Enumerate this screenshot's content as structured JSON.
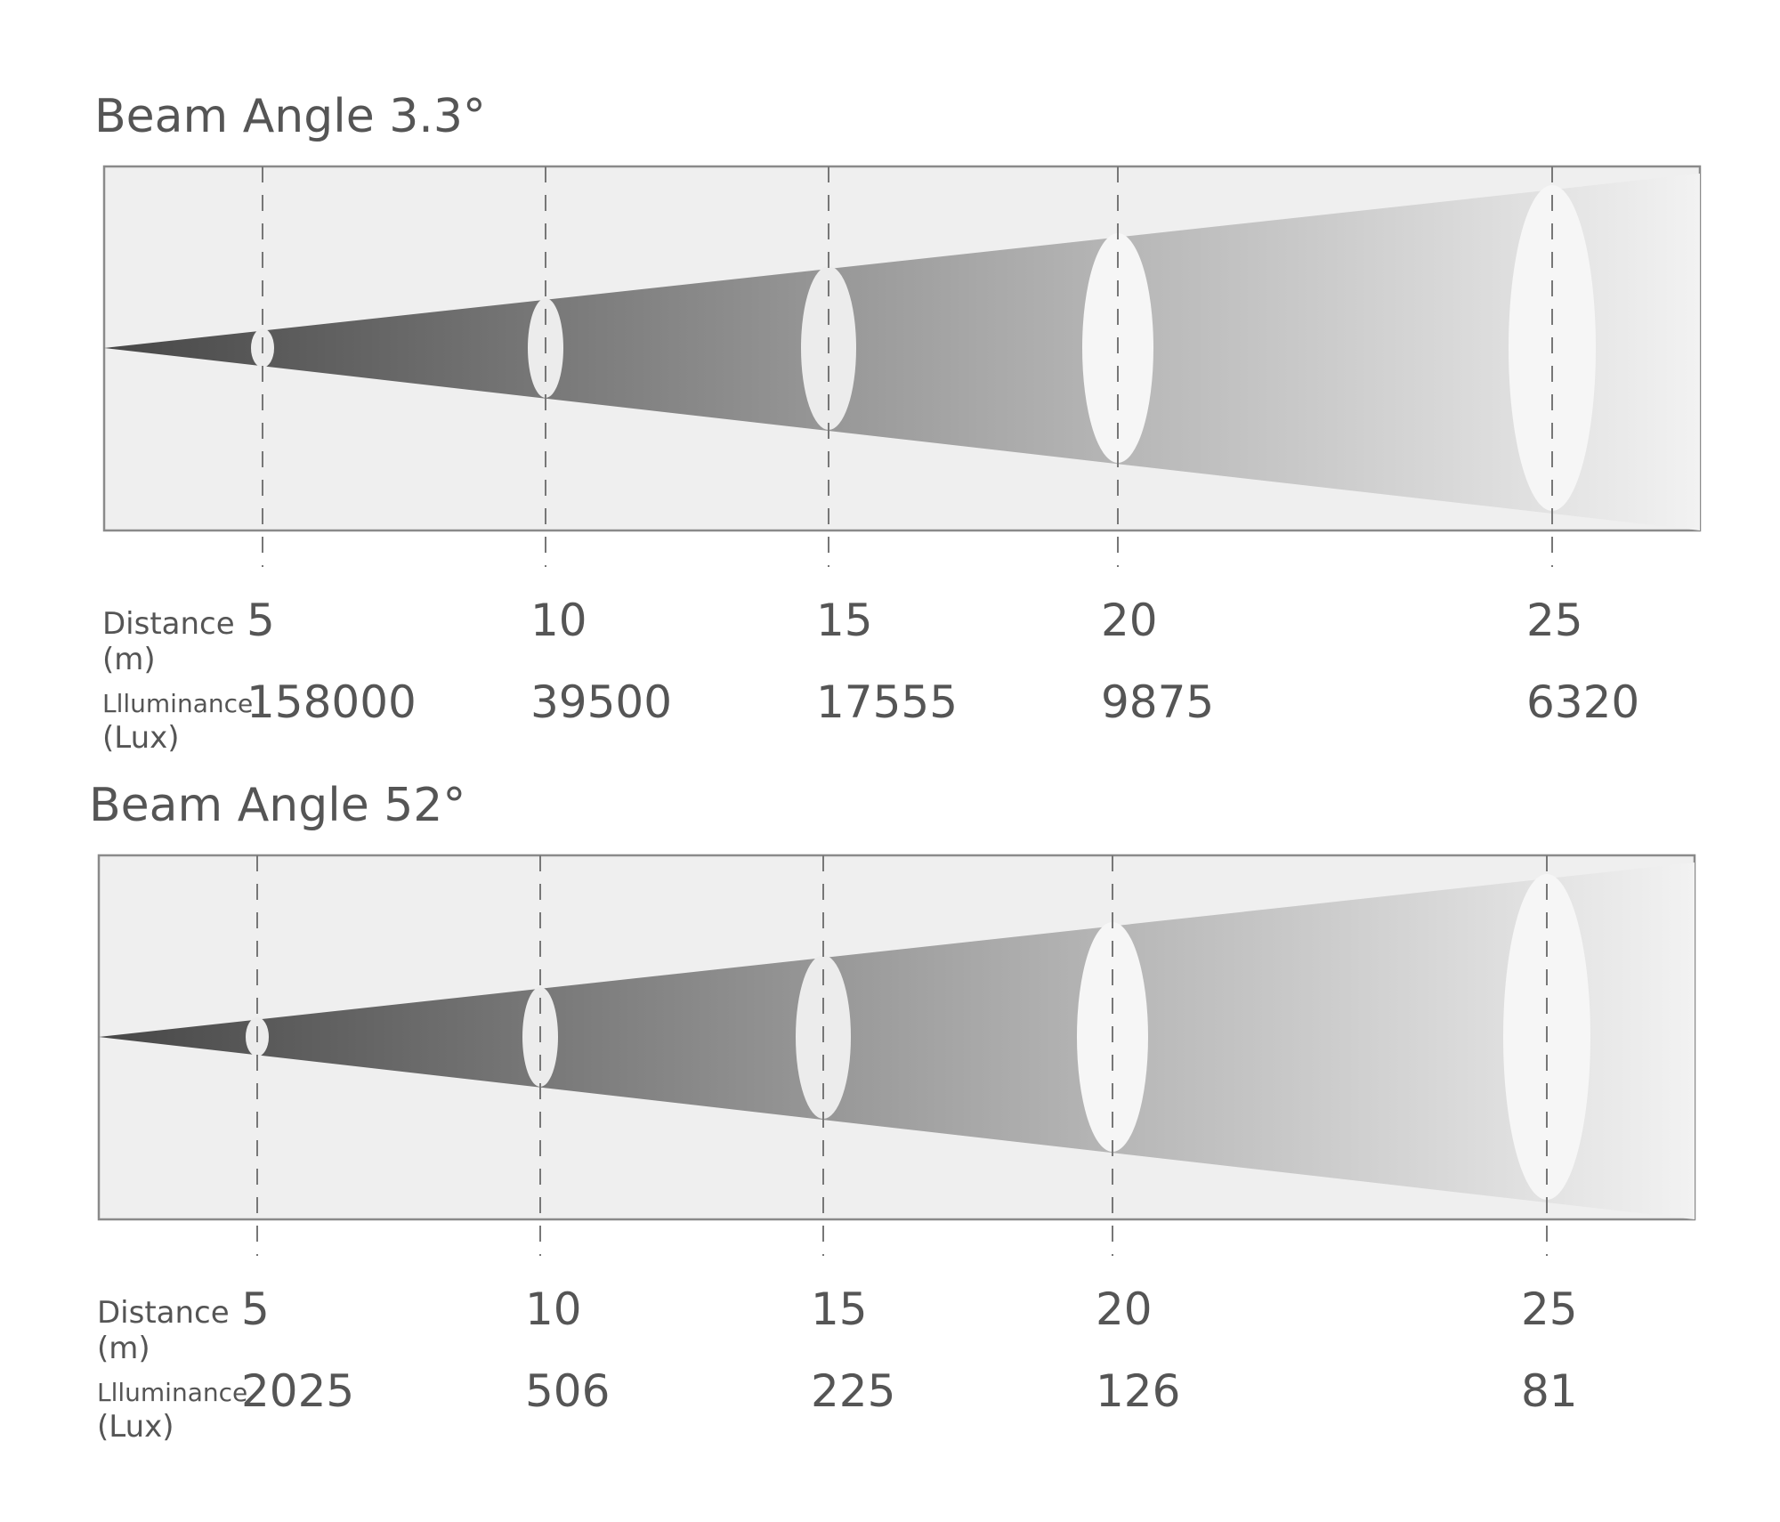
{
  "panels": [
    {
      "title": "Beam Angle 3.3°",
      "distance_label": "Distance",
      "distance_unit": "(m)",
      "distances": [
        5,
        10,
        15,
        20,
        25
      ],
      "illuminance_label": "Llluminance",
      "illuminance_unit": "(Lux)",
      "illuminances": [
        158000,
        39500,
        17555,
        9875,
        6320
      ]
    },
    {
      "title": "Beam Angle 52°",
      "distance_label": "Distance",
      "distance_unit": "(m)",
      "distances": [
        5,
        10,
        15,
        20,
        25
      ],
      "illuminance_label": "Llluminance",
      "illuminance_unit": "(Lux)",
      "illuminances": [
        2025,
        506,
        225,
        126,
        81
      ]
    }
  ]
}
